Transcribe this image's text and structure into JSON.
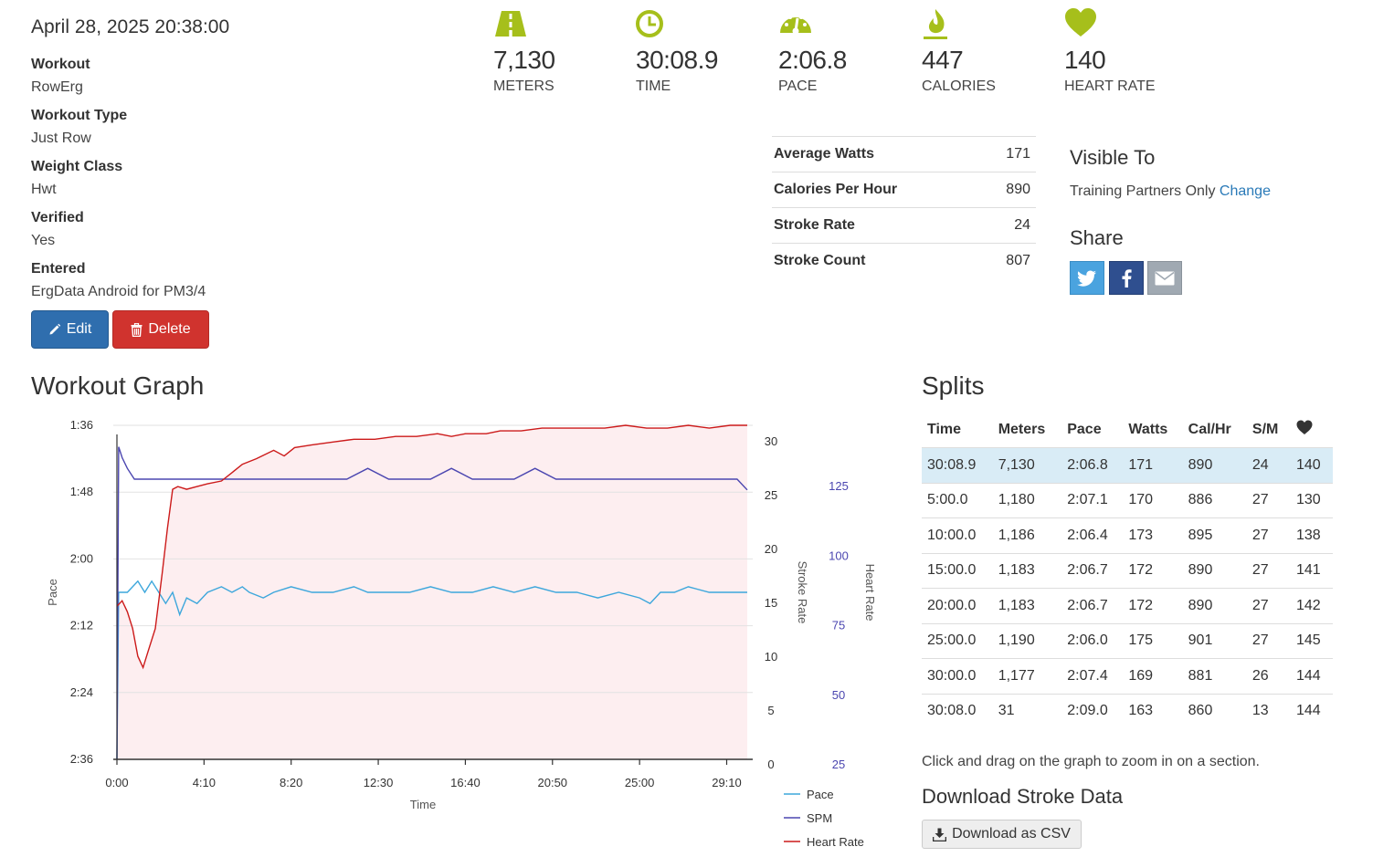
{
  "workout": {
    "date": "April 28, 2025 20:38:00",
    "details": [
      {
        "label": "Workout",
        "value": "RowErg"
      },
      {
        "label": "Workout Type",
        "value": "Just Row"
      },
      {
        "label": "Weight Class",
        "value": "Hwt"
      },
      {
        "label": "Verified",
        "value": "Yes"
      },
      {
        "label": "Entered",
        "value": "ErgData Android for PM3/4"
      }
    ],
    "edit_label": "Edit",
    "delete_label": "Delete"
  },
  "stats": [
    {
      "value": "7,130",
      "label": "METERS",
      "icon": "road-icon"
    },
    {
      "value": "30:08.9",
      "label": "TIME",
      "icon": "clock-icon"
    },
    {
      "value": "2:06.8",
      "label": "PACE",
      "icon": "speedometer-icon"
    },
    {
      "value": "447",
      "label": "CALORIES",
      "icon": "flame-icon"
    },
    {
      "value": "140",
      "label": "HEART RATE",
      "icon": "heart-icon"
    }
  ],
  "summary": [
    {
      "label": "Average Watts",
      "value": "171"
    },
    {
      "label": "Calories Per Hour",
      "value": "890"
    },
    {
      "label": "Stroke Rate",
      "value": "24"
    },
    {
      "label": "Stroke Count",
      "value": "807"
    }
  ],
  "visibility": {
    "title": "Visible To",
    "text": "Training Partners Only",
    "change_label": "Change"
  },
  "share": {
    "title": "Share",
    "buttons": [
      "twitter-icon",
      "facebook-icon",
      "envelope-icon"
    ]
  },
  "colors": {
    "accent_icon": "#a6bf1b",
    "pace": "#3da7dc",
    "spm": "#4b46b0",
    "heart_rate": "#cc1a1a",
    "edit": "#2f6eae",
    "delete": "#d0332e",
    "link": "#2a7ab8",
    "row_highlight": "#d9ecf6"
  },
  "graph": {
    "title": "Workout Graph"
  },
  "chart_data": {
    "type": "line",
    "xlabel": "Time",
    "x_ticks": [
      "0:00",
      "4:10",
      "8:20",
      "12:30",
      "16:40",
      "20:50",
      "25:00",
      "29:10"
    ],
    "x_range_seconds": [
      0,
      1809
    ],
    "y_left": {
      "label": "Pace",
      "ticks": [
        "1:36",
        "1:48",
        "2:00",
        "2:12",
        "2:24",
        "2:36"
      ],
      "range_seconds": [
        96,
        156
      ],
      "inverted": true
    },
    "y_right_spm": {
      "label": "Stroke Rate",
      "ticks": [
        0,
        5,
        10,
        15,
        20,
        25,
        30
      ],
      "range": [
        0,
        31
      ]
    },
    "y_right_hr": {
      "label": "Heart Rate",
      "ticks": [
        25,
        50,
        75,
        100,
        125
      ],
      "range": [
        25,
        145
      ]
    },
    "legend_position": "bottom-right",
    "series": [
      {
        "name": "Pace",
        "axis": "pace",
        "color": "#3da7dc",
        "points": [
          [
            0,
            156
          ],
          [
            5,
            126
          ],
          [
            10,
            126
          ],
          [
            30,
            126
          ],
          [
            60,
            124
          ],
          [
            80,
            126
          ],
          [
            100,
            124
          ],
          [
            120,
            126
          ],
          [
            140,
            128
          ],
          [
            160,
            126
          ],
          [
            180,
            130
          ],
          [
            200,
            127
          ],
          [
            230,
            128
          ],
          [
            260,
            126
          ],
          [
            300,
            125
          ],
          [
            330,
            126
          ],
          [
            360,
            125
          ],
          [
            380,
            126
          ],
          [
            420,
            127
          ],
          [
            450,
            126
          ],
          [
            500,
            125
          ],
          [
            560,
            126
          ],
          [
            620,
            126
          ],
          [
            680,
            125
          ],
          [
            720,
            126
          ],
          [
            780,
            126
          ],
          [
            840,
            126
          ],
          [
            900,
            125
          ],
          [
            960,
            126
          ],
          [
            1020,
            126
          ],
          [
            1080,
            125
          ],
          [
            1140,
            126
          ],
          [
            1200,
            125
          ],
          [
            1260,
            126
          ],
          [
            1320,
            126
          ],
          [
            1380,
            127
          ],
          [
            1440,
            126
          ],
          [
            1500,
            127
          ],
          [
            1530,
            128
          ],
          [
            1560,
            126
          ],
          [
            1600,
            126
          ],
          [
            1640,
            125
          ],
          [
            1700,
            126
          ],
          [
            1760,
            126
          ],
          [
            1809,
            126
          ]
        ]
      },
      {
        "name": "SPM",
        "axis": "spm",
        "color": "#4b46b0",
        "points": [
          [
            0,
            0
          ],
          [
            5,
            29
          ],
          [
            15,
            28
          ],
          [
            30,
            27
          ],
          [
            50,
            26
          ],
          [
            70,
            26
          ],
          [
            90,
            26
          ],
          [
            120,
            26
          ],
          [
            150,
            26
          ],
          [
            180,
            26
          ],
          [
            210,
            26
          ],
          [
            240,
            26
          ],
          [
            300,
            26
          ],
          [
            360,
            26
          ],
          [
            420,
            26
          ],
          [
            480,
            26
          ],
          [
            540,
            26
          ],
          [
            600,
            26
          ],
          [
            660,
            26
          ],
          [
            720,
            27
          ],
          [
            780,
            26
          ],
          [
            840,
            26
          ],
          [
            900,
            26
          ],
          [
            960,
            27
          ],
          [
            1020,
            26
          ],
          [
            1080,
            26
          ],
          [
            1140,
            26
          ],
          [
            1200,
            27
          ],
          [
            1260,
            26
          ],
          [
            1320,
            26
          ],
          [
            1380,
            26
          ],
          [
            1440,
            26
          ],
          [
            1500,
            26
          ],
          [
            1560,
            26
          ],
          [
            1600,
            26
          ],
          [
            1660,
            26
          ],
          [
            1700,
            26
          ],
          [
            1740,
            26
          ],
          [
            1780,
            26
          ],
          [
            1809,
            25
          ]
        ]
      },
      {
        "name": "Heart Rate",
        "axis": "hr",
        "color": "#cc1a1a",
        "points": [
          [
            0,
            80
          ],
          [
            15,
            82
          ],
          [
            30,
            78
          ],
          [
            45,
            72
          ],
          [
            60,
            62
          ],
          [
            75,
            58
          ],
          [
            90,
            64
          ],
          [
            110,
            72
          ],
          [
            130,
            92
          ],
          [
            145,
            108
          ],
          [
            160,
            122
          ],
          [
            175,
            123
          ],
          [
            200,
            122
          ],
          [
            230,
            123
          ],
          [
            260,
            124
          ],
          [
            300,
            125
          ],
          [
            330,
            128
          ],
          [
            360,
            131
          ],
          [
            400,
            133
          ],
          [
            450,
            136
          ],
          [
            480,
            134
          ],
          [
            510,
            137
          ],
          [
            560,
            138
          ],
          [
            620,
            139
          ],
          [
            680,
            140
          ],
          [
            740,
            140
          ],
          [
            800,
            141
          ],
          [
            860,
            141
          ],
          [
            920,
            142
          ],
          [
            960,
            141
          ],
          [
            1000,
            142
          ],
          [
            1060,
            142
          ],
          [
            1100,
            143
          ],
          [
            1160,
            143
          ],
          [
            1220,
            144
          ],
          [
            1280,
            144
          ],
          [
            1340,
            144
          ],
          [
            1400,
            144
          ],
          [
            1460,
            145
          ],
          [
            1520,
            144
          ],
          [
            1580,
            144
          ],
          [
            1640,
            145
          ],
          [
            1700,
            144
          ],
          [
            1760,
            145
          ],
          [
            1809,
            145
          ]
        ]
      }
    ]
  },
  "splits": {
    "title": "Splits",
    "columns": [
      "Time",
      "Meters",
      "Pace",
      "Watts",
      "Cal/Hr",
      "S/M"
    ],
    "heart_column_icon": "heart-icon",
    "rows": [
      [
        "30:08.9",
        "7,130",
        "2:06.8",
        "171",
        "890",
        "24",
        "140"
      ],
      [
        "5:00.0",
        "1,180",
        "2:07.1",
        "170",
        "886",
        "27",
        "130"
      ],
      [
        "10:00.0",
        "1,186",
        "2:06.4",
        "173",
        "895",
        "27",
        "138"
      ],
      [
        "15:00.0",
        "1,183",
        "2:06.7",
        "172",
        "890",
        "27",
        "141"
      ],
      [
        "20:00.0",
        "1,183",
        "2:06.7",
        "172",
        "890",
        "27",
        "142"
      ],
      [
        "25:00.0",
        "1,190",
        "2:06.0",
        "175",
        "901",
        "27",
        "145"
      ],
      [
        "30:00.0",
        "1,177",
        "2:07.4",
        "169",
        "881",
        "26",
        "144"
      ],
      [
        "30:08.0",
        "31",
        "2:09.0",
        "163",
        "860",
        "13",
        "144"
      ]
    ]
  },
  "zoom_hint": "Click and drag on the graph to zoom in on a section.",
  "download": {
    "title": "Download Stroke Data",
    "button_label": "Download as CSV"
  }
}
